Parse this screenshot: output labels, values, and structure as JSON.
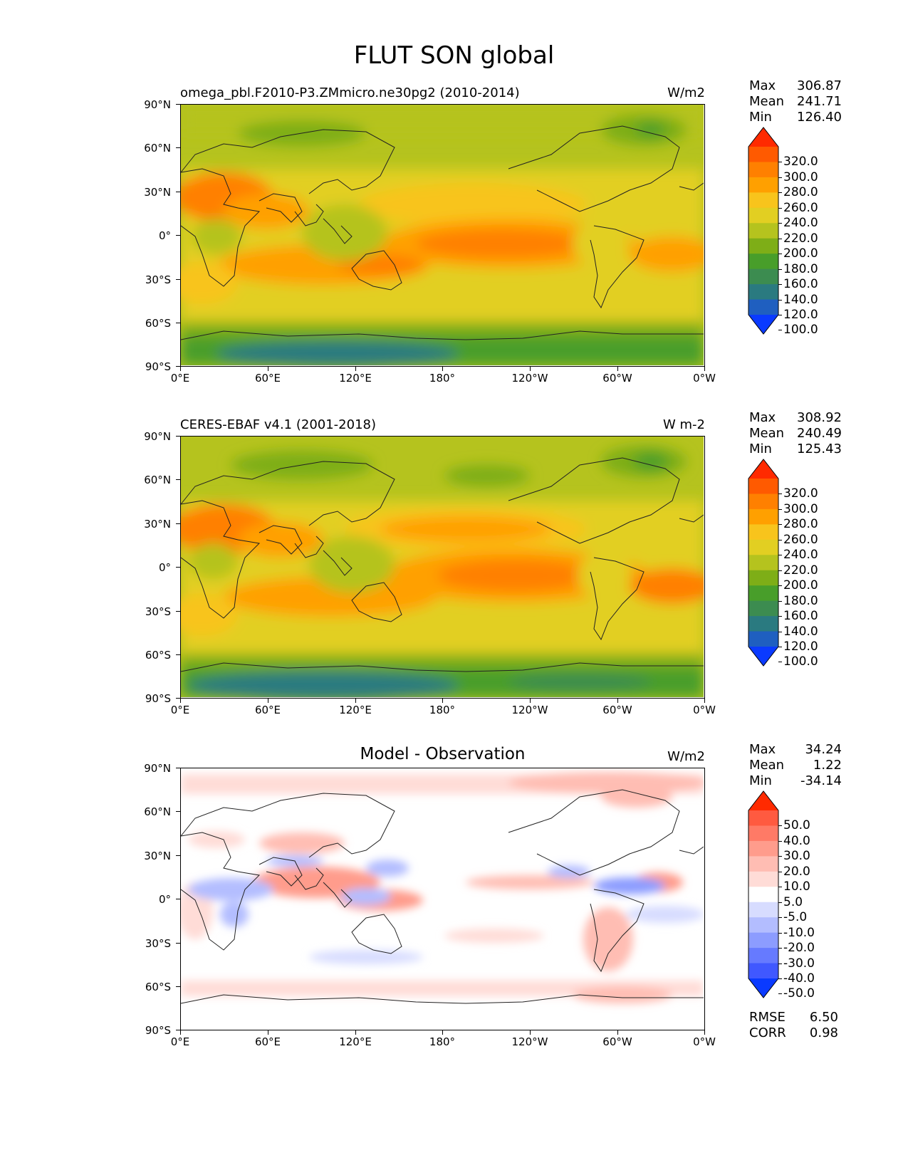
{
  "figure_title": "FLUT SON global",
  "lat_labels": [
    "90°N",
    "60°N",
    "30°N",
    "0°",
    "30°S",
    "60°S",
    "90°S"
  ],
  "lon_labels": [
    "0°E",
    "60°E",
    "120°E",
    "180°",
    "120°W",
    "60°W",
    "0°W"
  ],
  "panels": [
    {
      "left_title": "omega_pbl.F2010-P3.ZMmicro.ne30pg2 (2010-2014)",
      "center_title": "",
      "units": "W/m2",
      "stats": {
        "max_label": "Max",
        "max": "306.87",
        "mean_label": "Mean",
        "mean": "241.71",
        "min_label": "Min",
        "min": "126.40"
      },
      "levels": [
        "320.0",
        "300.0",
        "280.0",
        "260.0",
        "240.0",
        "220.0",
        "200.0",
        "180.0",
        "160.0",
        "140.0",
        "120.0",
        "100.0"
      ],
      "colors": [
        "#ff2a00",
        "#ff5a00",
        "#ff8000",
        "#ffa000",
        "#f8c41c",
        "#e2cf22",
        "#b5c31e",
        "#7eae17",
        "#489e2a",
        "#3c8c50",
        "#2a7a80",
        "#1f5fc0",
        "#0a3aff"
      ]
    },
    {
      "left_title": "CERES-EBAF v4.1 (2001-2018)",
      "center_title": "",
      "units": "W m-2",
      "stats": {
        "max_label": "Max",
        "max": "308.92",
        "mean_label": "Mean",
        "mean": "240.49",
        "min_label": "Min",
        "min": "125.43"
      },
      "levels": [
        "320.0",
        "300.0",
        "280.0",
        "260.0",
        "240.0",
        "220.0",
        "200.0",
        "180.0",
        "160.0",
        "140.0",
        "120.0",
        "100.0"
      ],
      "colors": [
        "#ff2a00",
        "#ff5a00",
        "#ff8000",
        "#ffa000",
        "#f8c41c",
        "#e2cf22",
        "#b5c31e",
        "#7eae17",
        "#489e2a",
        "#3c8c50",
        "#2a7a80",
        "#1f5fc0",
        "#0a3aff"
      ]
    },
    {
      "left_title": "",
      "center_title": "Model - Observation",
      "units": "W/m2",
      "stats": {
        "max_label": "Max",
        "max": "34.24",
        "mean_label": "Mean",
        "mean": "1.22",
        "min_label": "Min",
        "min": "-34.14"
      },
      "levels": [
        "50.0",
        "40.0",
        "30.0",
        "20.0",
        "10.0",
        "5.0",
        "-5.0",
        "-10.0",
        "-20.0",
        "-30.0",
        "-40.0",
        "-50.0"
      ],
      "colors": [
        "#ff2a00",
        "#ff5a40",
        "#ff7a66",
        "#ff9c8c",
        "#ffbdb3",
        "#ffdcd7",
        "#ffffff",
        "#d7dcff",
        "#b3bdff",
        "#8c9cff",
        "#667aff",
        "#4058ff",
        "#0a3aff"
      ],
      "rmse_label": "RMSE",
      "rmse": "6.50",
      "corr_label": "CORR",
      "corr": "0.98"
    }
  ],
  "chart_data": [
    {
      "type": "heatmap",
      "title": "omega_pbl.F2010-P3.ZMmicro.ne30pg2 (2010-2014)",
      "units": "W/m2",
      "xlim": [
        0,
        360
      ],
      "ylim": [
        -90,
        90
      ],
      "colorbar_levels": [
        100,
        120,
        140,
        160,
        180,
        200,
        220,
        240,
        260,
        280,
        300,
        320
      ],
      "max": 306.87,
      "mean": 241.71,
      "min": 126.4
    },
    {
      "type": "heatmap",
      "title": "CERES-EBAF v4.1 (2001-2018)",
      "units": "W m-2",
      "xlim": [
        0,
        360
      ],
      "ylim": [
        -90,
        90
      ],
      "colorbar_levels": [
        100,
        120,
        140,
        160,
        180,
        200,
        220,
        240,
        260,
        280,
        300,
        320
      ],
      "max": 308.92,
      "mean": 240.49,
      "min": 125.43
    },
    {
      "type": "heatmap",
      "title": "Model - Observation",
      "units": "W/m2",
      "xlim": [
        0,
        360
      ],
      "ylim": [
        -90,
        90
      ],
      "colorbar_levels": [
        -50,
        -40,
        -30,
        -20,
        -10,
        -5,
        5,
        10,
        20,
        30,
        40,
        50
      ],
      "max": 34.24,
      "mean": 1.22,
      "min": -34.14,
      "rmse": 6.5,
      "corr": 0.98
    }
  ]
}
